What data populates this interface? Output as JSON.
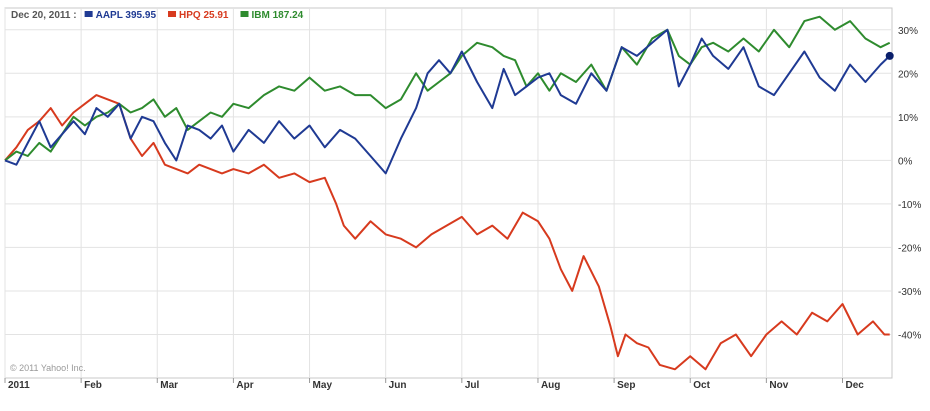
{
  "legend": {
    "date": "Dec 20, 2011 :",
    "items": [
      {
        "symbol": "AAPL",
        "value": "395.95",
        "color": "#1f3a93"
      },
      {
        "symbol": "HPQ",
        "value": "25.91",
        "color": "#d73a1e"
      },
      {
        "symbol": "IBM",
        "value": "187.24",
        "color": "#2e8b2e"
      }
    ]
  },
  "copyright": "© 2011 Yahoo! Inc.",
  "chart_data": {
    "type": "line",
    "title": "",
    "xlabel": "",
    "ylabel": "",
    "ylim": [
      -50,
      35
    ],
    "yticks": [
      30,
      20,
      10,
      0,
      -10,
      -20,
      -30,
      -40
    ],
    "ytick_labels": [
      "30%",
      "20%",
      "10%",
      "0%",
      "-10%",
      "-20%",
      "-30%",
      "-40%"
    ],
    "x_month_positions": [
      0,
      1,
      2,
      3,
      4,
      5,
      6,
      7,
      8,
      9,
      10,
      11
    ],
    "xtick_labels": [
      "2011",
      "Feb",
      "Mar",
      "Apr",
      "May",
      "Jun",
      "Jul",
      "Aug",
      "Sep",
      "Oct",
      "Nov",
      "Dec"
    ],
    "xlim": [
      0,
      11.65
    ],
    "grid": true,
    "legend_placement": "top-left",
    "series": [
      {
        "name": "AAPL",
        "color": "#1f3a93",
        "x": [
          0,
          0.15,
          0.3,
          0.45,
          0.6,
          0.75,
          0.9,
          1.05,
          1.2,
          1.35,
          1.5,
          1.65,
          1.8,
          1.95,
          2.1,
          2.25,
          2.4,
          2.55,
          2.7,
          2.85,
          3.0,
          3.2,
          3.4,
          3.6,
          3.8,
          4.0,
          4.2,
          4.4,
          4.6,
          4.8,
          5.0,
          5.2,
          5.4,
          5.55,
          5.7,
          5.85,
          6.0,
          6.2,
          6.4,
          6.55,
          6.7,
          6.85,
          7.0,
          7.15,
          7.3,
          7.5,
          7.7,
          7.9,
          8.1,
          8.3,
          8.5,
          8.7,
          8.85,
          9.0,
          9.15,
          9.3,
          9.5,
          9.7,
          9.9,
          10.1,
          10.3,
          10.5,
          10.7,
          10.9,
          11.1,
          11.3,
          11.5,
          11.62
        ],
        "values": [
          0,
          -1,
          4,
          9,
          3,
          6,
          9,
          6,
          12,
          10,
          13,
          5,
          10,
          9,
          4,
          0,
          8,
          7,
          5,
          8,
          2,
          7,
          4,
          9,
          5,
          8,
          3,
          7,
          5,
          1,
          -3,
          5,
          12,
          20,
          23,
          20,
          25,
          18,
          12,
          21,
          15,
          17,
          19,
          20,
          15,
          13,
          20,
          16,
          26,
          24,
          27,
          30,
          17,
          22,
          28,
          24,
          21,
          26,
          17,
          15,
          20,
          25,
          19,
          16,
          22,
          18,
          22,
          24
        ]
      },
      {
        "name": "HPQ",
        "color": "#d73a1e",
        "x": [
          0,
          0.15,
          0.3,
          0.45,
          0.6,
          0.75,
          0.9,
          1.05,
          1.2,
          1.35,
          1.5,
          1.65,
          1.8,
          1.95,
          2.1,
          2.25,
          2.4,
          2.55,
          2.7,
          2.85,
          3.0,
          3.2,
          3.4,
          3.6,
          3.8,
          4.0,
          4.2,
          4.35,
          4.45,
          4.6,
          4.8,
          5.0,
          5.2,
          5.4,
          5.6,
          5.8,
          6.0,
          6.2,
          6.4,
          6.6,
          6.8,
          7.0,
          7.15,
          7.3,
          7.45,
          7.6,
          7.8,
          7.95,
          8.05,
          8.15,
          8.3,
          8.45,
          8.6,
          8.8,
          9.0,
          9.2,
          9.4,
          9.6,
          9.8,
          10.0,
          10.2,
          10.4,
          10.6,
          10.8,
          11.0,
          11.2,
          11.4,
          11.55,
          11.62
        ],
        "values": [
          0,
          3,
          7,
          9,
          12,
          8,
          11,
          13,
          15,
          14,
          13,
          5,
          1,
          4,
          -1,
          -2,
          -3,
          -1,
          -2,
          -3,
          -2,
          -3,
          -1,
          -4,
          -3,
          -5,
          -4,
          -10,
          -15,
          -18,
          -14,
          -17,
          -18,
          -20,
          -17,
          -15,
          -13,
          -17,
          -15,
          -18,
          -12,
          -14,
          -18,
          -25,
          -30,
          -22,
          -29,
          -38,
          -45,
          -40,
          -42,
          -43,
          -47,
          -48,
          -45,
          -48,
          -42,
          -40,
          -45,
          -40,
          -37,
          -40,
          -35,
          -37,
          -33,
          -40,
          -37,
          -40,
          -40
        ]
      },
      {
        "name": "IBM",
        "color": "#2e8b2e",
        "x": [
          0,
          0.15,
          0.3,
          0.45,
          0.6,
          0.75,
          0.9,
          1.05,
          1.2,
          1.35,
          1.5,
          1.65,
          1.8,
          1.95,
          2.1,
          2.25,
          2.4,
          2.55,
          2.7,
          2.85,
          3.0,
          3.2,
          3.4,
          3.6,
          3.8,
          4.0,
          4.2,
          4.4,
          4.6,
          4.8,
          5.0,
          5.2,
          5.4,
          5.55,
          5.7,
          5.85,
          6.0,
          6.2,
          6.4,
          6.55,
          6.7,
          6.85,
          7.0,
          7.15,
          7.3,
          7.5,
          7.7,
          7.9,
          8.1,
          8.3,
          8.5,
          8.7,
          8.85,
          9.0,
          9.15,
          9.3,
          9.5,
          9.7,
          9.9,
          10.1,
          10.3,
          10.5,
          10.7,
          10.9,
          11.1,
          11.3,
          11.5,
          11.62
        ],
        "values": [
          0,
          2,
          1,
          4,
          2,
          6,
          10,
          8,
          10,
          11,
          13,
          11,
          12,
          14,
          10,
          12,
          7,
          9,
          11,
          10,
          13,
          12,
          15,
          17,
          16,
          19,
          16,
          17,
          15,
          15,
          12,
          14,
          20,
          16,
          18,
          20,
          24,
          27,
          26,
          24,
          23,
          17,
          20,
          16,
          20,
          18,
          22,
          16,
          26,
          22,
          28,
          30,
          24,
          22,
          26,
          27,
          25,
          28,
          25,
          30,
          26,
          32,
          33,
          30,
          32,
          28,
          26,
          27
        ]
      }
    ]
  }
}
